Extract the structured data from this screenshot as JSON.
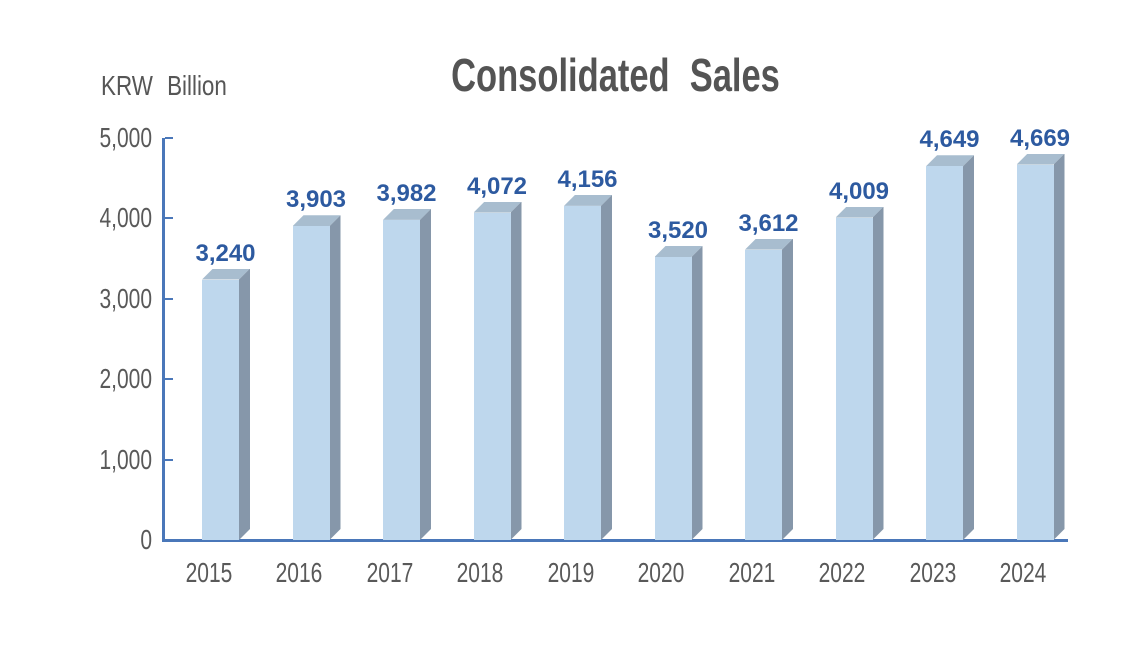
{
  "chart_data": {
    "type": "bar",
    "style": "3d-prism-bars",
    "title": "Consolidated Sales",
    "unit_label": "KRW Billion",
    "categories": [
      "2015",
      "2016",
      "2017",
      "2018",
      "2019",
      "2020",
      "2021",
      "2022",
      "2023",
      "2024"
    ],
    "values": [
      3240,
      3903,
      3982,
      4072,
      4156,
      3520,
      3612,
      4009,
      4649,
      4669
    ],
    "value_labels": [
      "3,240",
      "3,903",
      "3,982",
      "4,072",
      "4,156",
      "3,520",
      "3,612",
      "4,009",
      "4,649",
      "4,669"
    ],
    "y_axis": {
      "min": 0,
      "max": 5000,
      "tick_interval": 1000,
      "tick_labels": [
        "0",
        "1,000",
        "2,000",
        "3,000",
        "4,000",
        "5,000"
      ]
    },
    "xlabel": "",
    "ylabel": "KRW Billion",
    "legend": "none",
    "grid": "off",
    "colors": {
      "bar_front": "#BED7ED",
      "bar_top": "#A8BDCF",
      "bar_side": "#8697AA",
      "axis_line": "#4A77B9",
      "value_label_text": "#2D5AA0",
      "axis_text": "#595959",
      "title_text": "#545454"
    }
  }
}
